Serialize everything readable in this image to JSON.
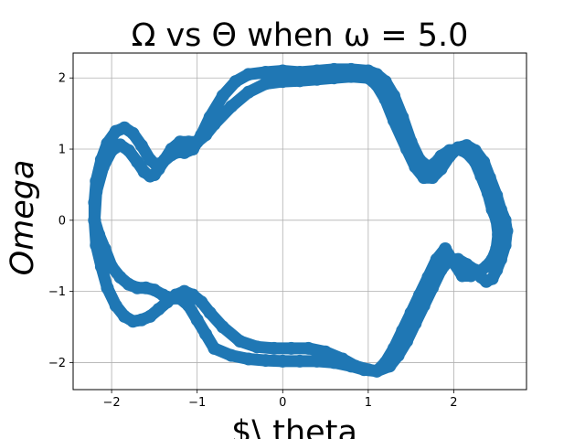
{
  "chart_data": {
    "type": "scatter",
    "title": "Ω vs Θ when ω = 5.0",
    "xlabel": "$\\ theta",
    "ylabel": "Omega",
    "xlim": [
      -2.45,
      2.85
    ],
    "ylim": [
      -2.38,
      2.35
    ],
    "xticks": [
      -2,
      -1,
      0,
      1,
      2
    ],
    "yticks": [
      -2,
      -1,
      0,
      1,
      2
    ],
    "xtick_labels": [
      "−2",
      "−1",
      "0",
      "1",
      "2"
    ],
    "ytick_labels": [
      "−2",
      "−1",
      "0",
      "1",
      "2"
    ],
    "grid": true,
    "series": [
      {
        "color": "#1f77b4",
        "x": [
          -2.2,
          -2.18,
          -2.1,
          -2.0,
          -1.9,
          -1.8,
          -1.7,
          -1.62,
          -1.55,
          -1.5,
          -1.45,
          -1.38,
          -1.3,
          -1.2,
          -1.1,
          -1.0,
          -0.9,
          -0.8,
          -0.6,
          -0.4,
          -0.2,
          0.0,
          0.2,
          0.4,
          0.6,
          0.8,
          1.0,
          1.1,
          1.2,
          1.3,
          1.45,
          1.55,
          1.65,
          1.75,
          1.85,
          1.95,
          2.05,
          2.15,
          2.25,
          2.35,
          2.42,
          2.5,
          2.55,
          2.6,
          2.62,
          2.6,
          2.55,
          2.5,
          2.45,
          2.38,
          2.32,
          2.25,
          2.15,
          2.05,
          1.95,
          1.85,
          1.75,
          1.65,
          1.55,
          1.45,
          1.35,
          1.25,
          1.1,
          0.95,
          0.8,
          0.6,
          0.4,
          0.2,
          0.0,
          -0.2,
          -0.4,
          -0.6,
          -0.8,
          -0.9,
          -1.0,
          -1.1,
          -1.2,
          -1.3,
          -1.4,
          -1.5,
          -1.6,
          -1.7,
          -1.8,
          -1.9,
          -2.0,
          -2.08,
          -2.15,
          -2.2,
          -2.2,
          -2.18,
          -2.12,
          -2.05,
          -1.95,
          -1.85,
          -1.75,
          -1.65,
          -1.55,
          -1.48,
          -1.4,
          -1.3,
          -1.22,
          -1.15,
          -1.05,
          -0.95,
          -0.85,
          -0.7,
          -0.55,
          -0.4,
          -0.2,
          0.0,
          0.2,
          0.4,
          0.6,
          0.8,
          1.0,
          1.1,
          1.2,
          1.3,
          1.4,
          1.5,
          1.6,
          1.7,
          1.78,
          1.85,
          1.95,
          2.05,
          2.15,
          2.25,
          2.32,
          2.4,
          2.45,
          2.5,
          2.52,
          2.5,
          2.45,
          2.38,
          2.3,
          2.2,
          2.1,
          2.0,
          1.9,
          1.8,
          1.7,
          1.6,
          1.5,
          1.4,
          1.3,
          1.2,
          1.1,
          1.0,
          0.85,
          0.7,
          0.5,
          0.3,
          0.1,
          -0.1,
          -0.3,
          -0.5,
          -0.7,
          -0.85,
          -0.95,
          -1.05,
          -1.15,
          -1.25,
          -1.35,
          -1.45,
          -1.55,
          -1.65,
          -1.75,
          -1.85,
          -1.95,
          -2.05,
          -2.12,
          -2.18,
          -2.2
        ],
        "y": [
          0.0,
          0.4,
          0.75,
          0.98,
          1.06,
          0.98,
          0.82,
          0.68,
          0.62,
          0.64,
          0.72,
          0.85,
          1.0,
          1.1,
          1.1,
          1.1,
          1.2,
          1.35,
          1.6,
          1.8,
          1.92,
          1.95,
          1.96,
          1.98,
          2.0,
          2.02,
          2.0,
          1.9,
          1.7,
          1.4,
          1.0,
          0.75,
          0.6,
          0.6,
          0.72,
          0.9,
          1.02,
          1.05,
          0.98,
          0.82,
          0.6,
          0.35,
          0.15,
          0.0,
          -0.15,
          -0.35,
          -0.55,
          -0.7,
          -0.82,
          -0.86,
          -0.8,
          -0.7,
          -0.62,
          -0.55,
          -0.55,
          -0.7,
          -0.95,
          -1.2,
          -1.45,
          -1.7,
          -1.9,
          -2.05,
          -2.12,
          -2.1,
          -2.05,
          -2.0,
          -1.98,
          -1.98,
          -1.98,
          -1.97,
          -1.95,
          -1.9,
          -1.8,
          -1.6,
          -1.4,
          -1.2,
          -1.1,
          -1.1,
          -1.05,
          -0.98,
          -0.95,
          -0.95,
          -0.9,
          -0.8,
          -0.65,
          -0.4,
          -0.2,
          0.0,
          0.25,
          0.55,
          0.85,
          1.08,
          1.25,
          1.3,
          1.22,
          1.05,
          0.85,
          0.78,
          0.82,
          0.92,
          0.96,
          0.95,
          1.0,
          1.2,
          1.45,
          1.75,
          1.95,
          2.05,
          2.08,
          2.1,
          2.08,
          2.1,
          2.12,
          2.12,
          2.1,
          2.05,
          1.95,
          1.75,
          1.45,
          1.1,
          0.85,
          0.75,
          0.8,
          0.9,
          0.98,
          1.0,
          0.95,
          0.82,
          0.62,
          0.38,
          0.15,
          0.0,
          -0.2,
          -0.4,
          -0.55,
          -0.65,
          -0.72,
          -0.78,
          -0.78,
          -0.6,
          -0.4,
          -0.55,
          -0.8,
          -1.05,
          -1.3,
          -1.55,
          -1.8,
          -2.0,
          -2.12,
          -2.1,
          -2.05,
          -1.95,
          -1.85,
          -1.8,
          -1.8,
          -1.8,
          -1.78,
          -1.7,
          -1.5,
          -1.3,
          -1.15,
          -1.05,
          -1.0,
          -1.05,
          -1.15,
          -1.25,
          -1.35,
          -1.4,
          -1.42,
          -1.35,
          -1.2,
          -0.95,
          -0.65,
          -0.35,
          0.0
        ]
      }
    ]
  }
}
